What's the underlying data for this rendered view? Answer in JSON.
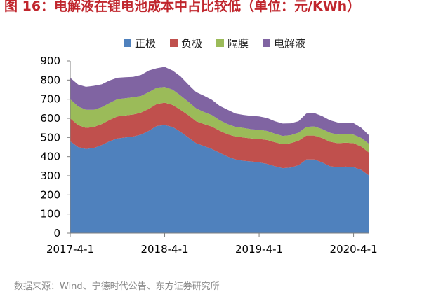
{
  "title": "图 16：电解液在锂电池成本中占比较低（单位：元/KWh）",
  "source": "数据来源：Wind、宁德时代公告、东方证券研究所",
  "colors": {
    "title": "#c0262d",
    "cathode": "#4f81bd",
    "anode": "#c0504d",
    "separator": "#9bbb59",
    "electrolyte": "#8064a2"
  },
  "chart_data": {
    "type": "area",
    "stacked": true,
    "title": "电解液在锂电池成本中占比较低（单位：元/KWh）",
    "xlabel": "",
    "ylabel": "",
    "ylim": [
      0,
      900
    ],
    "yticks": [
      0,
      100,
      200,
      300,
      400,
      500,
      600,
      700,
      800,
      900
    ],
    "xtick_labels": [
      "2017-4-1",
      "2018-4-1",
      "2019-4-1",
      "2020-4-1"
    ],
    "legend_position": "top",
    "x": [
      "2017-4",
      "2017-5",
      "2017-6",
      "2017-7",
      "2017-8",
      "2017-9",
      "2017-10",
      "2017-11",
      "2017-12",
      "2018-1",
      "2018-2",
      "2018-3",
      "2018-4",
      "2018-5",
      "2018-6",
      "2018-7",
      "2018-8",
      "2018-9",
      "2018-10",
      "2018-11",
      "2018-12",
      "2019-1",
      "2019-2",
      "2019-3",
      "2019-4",
      "2019-5",
      "2019-6",
      "2019-7",
      "2019-8",
      "2019-9",
      "2019-10",
      "2019-11",
      "2019-12",
      "2020-1",
      "2020-2",
      "2020-3",
      "2020-4",
      "2020-5",
      "2020-6"
    ],
    "series": [
      {
        "name": "正极",
        "color_key": "cathode",
        "values": [
          480,
          450,
          440,
          445,
          460,
          480,
          495,
          500,
          505,
          515,
          535,
          560,
          565,
          555,
          530,
          500,
          470,
          455,
          440,
          420,
          400,
          385,
          378,
          375,
          370,
          362,
          350,
          340,
          343,
          355,
          385,
          385,
          370,
          350,
          345,
          348,
          345,
          330,
          300
        ]
      },
      {
        "name": "负极",
        "color_key": "anode",
        "values": [
          120,
          115,
          110,
          110,
          110,
          112,
          115,
          115,
          115,
          115,
          115,
          115,
          117,
          115,
          115,
          117,
          115,
          115,
          117,
          115,
          117,
          120,
          122,
          120,
          122,
          125,
          125,
          125,
          127,
          128,
          125,
          125,
          127,
          128,
          125,
          125,
          125,
          122,
          120
        ]
      },
      {
        "name": "隔膜",
        "color_key": "separator",
        "values": [
          100,
          97,
          95,
          90,
          88,
          88,
          90,
          90,
          90,
          87,
          87,
          85,
          82,
          80,
          75,
          70,
          67,
          63,
          60,
          55,
          53,
          50,
          50,
          48,
          48,
          47,
          45,
          43,
          42,
          42,
          45,
          48,
          47,
          47,
          45,
          45,
          45,
          45,
          45
        ]
      },
      {
        "name": "电解液",
        "color_key": "electrolyte",
        "values": [
          112,
          115,
          120,
          125,
          120,
          118,
          112,
          110,
          107,
          110,
          113,
          102,
          105,
          100,
          100,
          90,
          85,
          85,
          80,
          75,
          75,
          70,
          68,
          70,
          70,
          68,
          65,
          65,
          62,
          60,
          70,
          70,
          68,
          65,
          63,
          60,
          60,
          53,
          45
        ]
      }
    ]
  }
}
